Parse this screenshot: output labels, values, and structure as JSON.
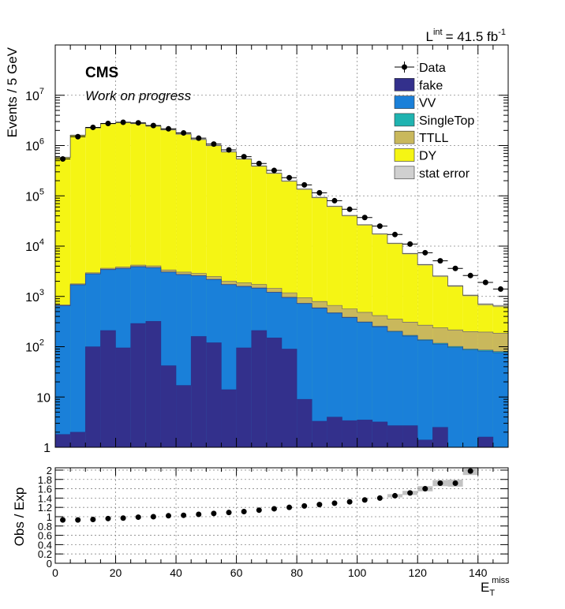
{
  "lumi": {
    "prefix": "L",
    "sup": "int",
    "value": "= 41.5 fb",
    "unit_sup": "-1"
  },
  "cms_label": "CMS",
  "cms_sublabel": "Work on progress",
  "chart_data": [
    {
      "type": "bar",
      "stacked": true,
      "log_y": true,
      "ylabel": "Events / 5 GeV",
      "xlim": [
        0,
        150
      ],
      "ylim": [
        1,
        100000000
      ],
      "y_tick_labels": [
        "1",
        "10",
        "10",
        "10",
        "10",
        "10",
        "10",
        "10"
      ],
      "y_tick_exponents": [
        "",
        "",
        "2",
        "3",
        "4",
        "5",
        "6",
        "7"
      ],
      "legend_position": "top-right",
      "grid": true,
      "bin_edges": [
        0,
        5,
        10,
        15,
        20,
        25,
        30,
        35,
        40,
        45,
        50,
        55,
        60,
        65,
        70,
        75,
        80,
        85,
        90,
        95,
        100,
        105,
        110,
        115,
        120,
        125,
        130,
        135,
        140,
        145,
        150
      ],
      "stack_order_bottom_to_top": [
        "fake",
        "VV",
        "SingleTop",
        "TTLL",
        "DY"
      ],
      "series": [
        {
          "name": "fake",
          "color": "#33308c",
          "values": [
            1.8,
            2,
            100,
            210,
            95,
            290,
            320,
            42,
            17,
            160,
            120,
            14,
            95,
            210,
            150,
            90,
            9,
            3.3,
            4,
            3.4,
            3.5,
            3.2,
            2.7,
            2.7,
            1.4,
            2.5,
            1,
            0.8,
            1.6,
            1
          ]
        },
        {
          "name": "VV",
          "color": "#1a80d9",
          "values": [
            650,
            1700,
            2700,
            3200,
            3500,
            3600,
            3400,
            3000,
            2700,
            2400,
            2050,
            1700,
            1480,
            1250,
            1050,
            860,
            710,
            580,
            460,
            375,
            300,
            245,
            195,
            160,
            132,
            110,
            95,
            85,
            80,
            75
          ]
        },
        {
          "name": "SingleTop",
          "color": "#1fb3b0",
          "values": [
            5,
            15,
            30,
            40,
            40,
            40,
            38,
            35,
            30,
            27,
            23,
            20,
            18,
            16,
            14,
            12,
            11,
            10,
            9,
            8,
            8,
            7,
            6,
            6,
            5,
            5,
            5,
            4,
            4,
            4
          ]
        },
        {
          "name": "TTLL",
          "color": "#c9b85c",
          "values": [
            20,
            60,
            120,
            180,
            220,
            260,
            280,
            290,
            300,
            290,
            290,
            280,
            260,
            250,
            240,
            220,
            210,
            200,
            190,
            180,
            170,
            160,
            150,
            140,
            130,
            120,
            115,
            110,
            110,
            105
          ]
        },
        {
          "name": "DY",
          "color": "#f5f514",
          "values": [
            580000,
            1600000,
            2250000,
            2720000,
            2870000,
            2740000,
            2440000,
            2060000,
            1690000,
            1320000,
            1000000,
            750000,
            540000,
            390000,
            280000,
            195000,
            135000,
            92000,
            61000,
            40000,
            26000,
            17000,
            11000,
            6800,
            4000,
            2300,
            1400,
            850,
            500,
            460
          ]
        }
      ],
      "data_label": "Data",
      "data_values": [
        540000,
        1500000,
        2300000,
        2750000,
        2900000,
        2830000,
        2500000,
        2150000,
        1780000,
        1400000,
        1070000,
        820000,
        600000,
        440000,
        320000,
        230000,
        165000,
        115000,
        80000,
        54000,
        37000,
        25000,
        17000,
        11000,
        7400,
        5100,
        3600,
        2600,
        1900,
        1400
      ],
      "stat_error_label": "stat error"
    },
    {
      "type": "scatter",
      "xlabel": "E",
      "xlabel_sup": "miss",
      "xlabel_sub": "T",
      "ylabel": "Obs / Exp",
      "xlim": [
        0,
        150
      ],
      "ylim": [
        0,
        2.05
      ],
      "x_tick_labels": [
        "0",
        "20",
        "40",
        "60",
        "80",
        "100",
        "120",
        "140"
      ],
      "y_tick_labels": [
        "0",
        "0.2",
        "0.4",
        "0.6",
        "0.8",
        "1",
        "1.2",
        "1.4",
        "1.6",
        "1.8",
        "2"
      ],
      "grid": true,
      "x": [
        2.5,
        7.5,
        12.5,
        17.5,
        22.5,
        27.5,
        32.5,
        37.5,
        42.5,
        47.5,
        52.5,
        57.5,
        62.5,
        67.5,
        72.5,
        77.5,
        82.5,
        87.5,
        92.5,
        97.5,
        102.5,
        107.5,
        112.5,
        117.5,
        122.5,
        127.5,
        132.5,
        137.5
      ],
      "y": [
        0.93,
        0.93,
        0.94,
        0.96,
        0.97,
        0.99,
        1.0,
        1.02,
        1.03,
        1.05,
        1.07,
        1.09,
        1.11,
        1.14,
        1.17,
        1.2,
        1.23,
        1.26,
        1.29,
        1.32,
        1.36,
        1.4,
        1.45,
        1.51,
        1.6,
        1.72,
        1.72,
        1.98
      ]
    }
  ]
}
